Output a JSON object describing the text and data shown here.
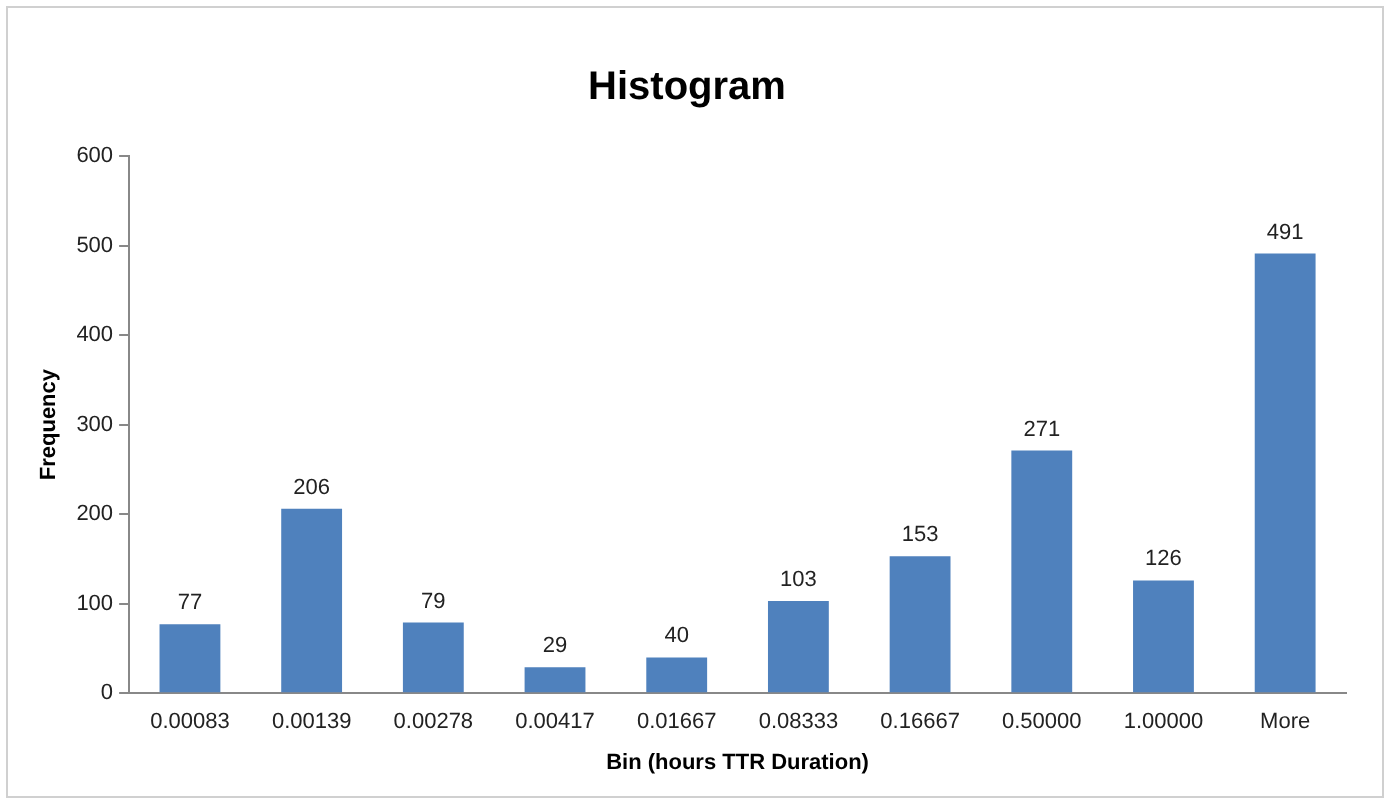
{
  "chart_data": {
    "type": "bar",
    "title": "Histogram",
    "xlabel": "Bin (hours TTR Duration)",
    "ylabel": "Frequency",
    "categories": [
      "0.00083",
      "0.00139",
      "0.00278",
      "0.00417",
      "0.01667",
      "0.08333",
      "0.16667",
      "0.50000",
      "1.00000",
      "More"
    ],
    "values": [
      77,
      206,
      79,
      29,
      40,
      103,
      153,
      271,
      126,
      491
    ],
    "color": "#4f81bd",
    "ylim": [
      0,
      600
    ],
    "yticks": [
      0,
      100,
      200,
      300,
      400,
      500,
      600
    ],
    "grid": false,
    "legend": false,
    "data_labels": true
  }
}
